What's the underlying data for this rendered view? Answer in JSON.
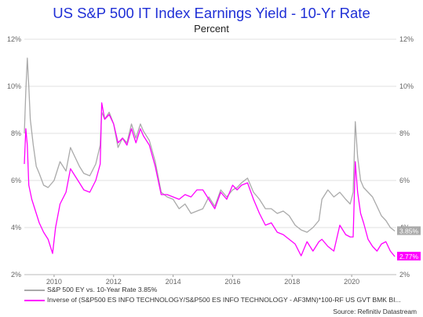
{
  "title": "US S&P 500 IT Index Earnings Yield - 10-Yr Rate",
  "subtitle": "Percent",
  "source": "Source: Refinitiv Datastream",
  "colors": {
    "title": "#1f2fd6",
    "series_gray": "#aaaaaa",
    "series_magenta": "#ff00ff",
    "grid": "#e0e0e0",
    "axis_text": "#666666"
  },
  "chart_data": {
    "type": "line",
    "xlim": [
      2009.0,
      2021.5
    ],
    "ylim": [
      2,
      12
    ],
    "x_ticks": [
      "2010",
      "2012",
      "2014",
      "2016",
      "2018",
      "2020"
    ],
    "y_ticks_left": [
      "2%",
      "4%",
      "6%",
      "8%",
      "10%",
      "12%"
    ],
    "y_ticks_right": [
      "2%",
      "4%",
      "6%",
      "8%",
      "10%",
      "12%"
    ],
    "grid": true,
    "legend_position": "bottom-left",
    "series": [
      {
        "name": "S&P 500 EY vs. 10-Year Rate 3.85%",
        "color": "#aaaaaa",
        "end_label": "3.85%",
        "x": [
          2009.0,
          2009.05,
          2009.1,
          2009.15,
          2009.2,
          2009.3,
          2009.4,
          2009.5,
          2009.65,
          2009.8,
          2010.0,
          2010.2,
          2010.4,
          2010.55,
          2010.7,
          2010.85,
          2011.0,
          2011.2,
          2011.4,
          2011.55,
          2011.6,
          2011.7,
          2011.85,
          2012.0,
          2012.15,
          2012.3,
          2012.45,
          2012.6,
          2012.75,
          2012.9,
          2013.0,
          2013.2,
          2013.4,
          2013.6,
          2013.8,
          2014.0,
          2014.2,
          2014.4,
          2014.6,
          2014.8,
          2015.0,
          2015.2,
          2015.4,
          2015.6,
          2015.8,
          2016.0,
          2016.15,
          2016.3,
          2016.5,
          2016.7,
          2016.9,
          2017.1,
          2017.3,
          2017.5,
          2017.7,
          2017.9,
          2018.1,
          2018.3,
          2018.5,
          2018.7,
          2018.9,
          2019.0,
          2019.2,
          2019.4,
          2019.6,
          2019.8,
          2019.95,
          2020.05,
          2020.12,
          2020.2,
          2020.3,
          2020.4,
          2020.55,
          2020.7,
          2020.85,
          2021.0,
          2021.15,
          2021.3,
          2021.45
        ],
        "y": [
          8.0,
          9.8,
          11.2,
          10.0,
          8.6,
          7.5,
          6.6,
          6.3,
          5.8,
          5.7,
          6.0,
          6.8,
          6.4,
          7.4,
          7.0,
          6.6,
          6.3,
          6.2,
          6.7,
          7.5,
          8.9,
          8.6,
          8.9,
          8.4,
          7.4,
          7.8,
          7.6,
          8.4,
          7.8,
          8.4,
          8.1,
          7.7,
          6.8,
          5.5,
          5.3,
          5.2,
          4.8,
          5.0,
          4.6,
          4.7,
          4.8,
          5.3,
          4.9,
          5.6,
          5.3,
          5.6,
          5.7,
          5.9,
          6.1,
          5.5,
          5.2,
          4.8,
          4.8,
          4.6,
          4.7,
          4.5,
          4.1,
          3.9,
          3.8,
          4.0,
          4.3,
          5.2,
          5.6,
          5.3,
          5.5,
          5.2,
          5.0,
          5.5,
          8.5,
          7.0,
          6.0,
          5.7,
          5.5,
          5.3,
          4.9,
          4.5,
          4.3,
          4.0,
          3.85
        ]
      },
      {
        "name": "Inverse of (S&P500 ES INFO TECHNOLOGY/S&P500 ES INFO TECHNOLOGY - AF3MN)*100-RF US GVT BMK BI...",
        "color": "#ff00ff",
        "end_label": "2.77%",
        "x": [
          2009.0,
          2009.05,
          2009.1,
          2009.15,
          2009.25,
          2009.35,
          2009.5,
          2009.65,
          2009.8,
          2009.95,
          2010.05,
          2010.2,
          2010.4,
          2010.55,
          2010.7,
          2010.85,
          2011.0,
          2011.2,
          2011.4,
          2011.55,
          2011.6,
          2011.7,
          2011.85,
          2012.0,
          2012.15,
          2012.3,
          2012.45,
          2012.6,
          2012.75,
          2012.9,
          2013.0,
          2013.2,
          2013.4,
          2013.6,
          2013.8,
          2014.0,
          2014.2,
          2014.4,
          2014.6,
          2014.8,
          2015.0,
          2015.2,
          2015.4,
          2015.6,
          2015.8,
          2016.0,
          2016.15,
          2016.3,
          2016.5,
          2016.7,
          2016.9,
          2017.1,
          2017.3,
          2017.5,
          2017.7,
          2017.9,
          2018.1,
          2018.3,
          2018.5,
          2018.7,
          2018.9,
          2019.0,
          2019.2,
          2019.4,
          2019.6,
          2019.8,
          2019.95,
          2020.05,
          2020.12,
          2020.2,
          2020.3,
          2020.4,
          2020.55,
          2020.7,
          2020.85,
          2021.0,
          2021.15,
          2021.3,
          2021.45
        ],
        "y": [
          6.7,
          8.2,
          7.5,
          5.8,
          5.2,
          4.8,
          4.2,
          3.8,
          3.5,
          2.9,
          4.0,
          5.0,
          5.5,
          6.5,
          6.2,
          5.9,
          5.6,
          5.5,
          6.0,
          6.7,
          9.3,
          8.6,
          8.8,
          8.4,
          7.6,
          7.8,
          7.5,
          8.2,
          7.6,
          8.2,
          7.9,
          7.5,
          6.6,
          5.4,
          5.4,
          5.3,
          5.2,
          5.4,
          5.3,
          5.6,
          5.6,
          5.2,
          4.8,
          5.5,
          5.2,
          5.8,
          5.6,
          5.8,
          5.9,
          5.2,
          4.6,
          4.1,
          4.2,
          3.8,
          3.7,
          3.5,
          3.3,
          2.8,
          3.4,
          3.0,
          3.4,
          3.5,
          3.2,
          3.0,
          4.1,
          3.7,
          3.6,
          3.6,
          6.8,
          5.5,
          4.6,
          4.2,
          3.5,
          3.2,
          3.0,
          3.3,
          3.4,
          3.0,
          2.77
        ]
      }
    ]
  }
}
